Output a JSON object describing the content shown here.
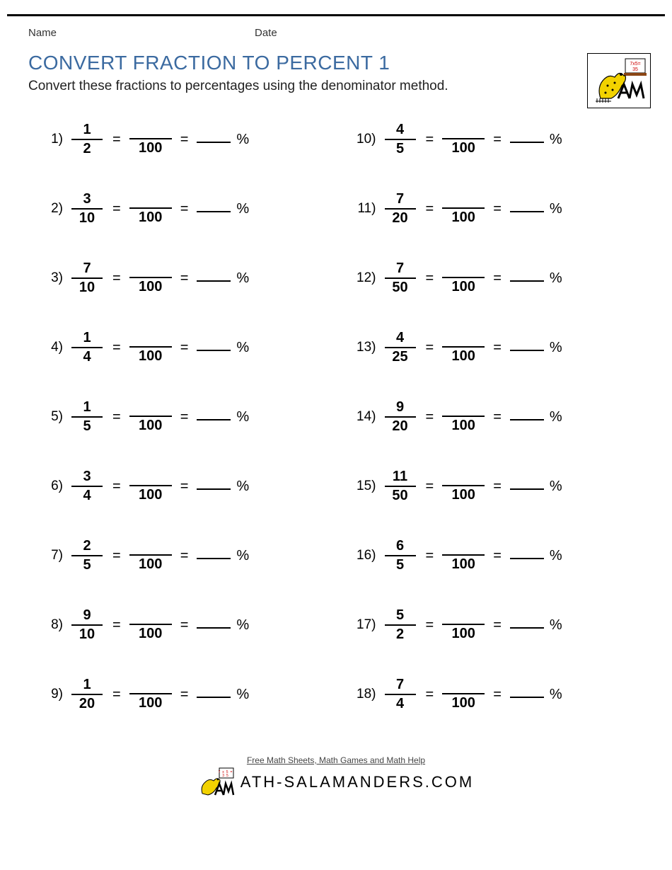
{
  "header": {
    "name_label": "Name",
    "date_label": "Date"
  },
  "title": "CONVERT FRACTION TO PERCENT 1",
  "instructions": "Convert these fractions to percentages using the denominator method.",
  "target_denominator": "100",
  "percent_symbol": "%",
  "equals_symbol": "=",
  "problems": [
    {
      "n": "1)",
      "num": "1",
      "den": "2"
    },
    {
      "n": "2)",
      "num": "3",
      "den": "10"
    },
    {
      "n": "3)",
      "num": "7",
      "den": "10"
    },
    {
      "n": "4)",
      "num": "1",
      "den": "4"
    },
    {
      "n": "5)",
      "num": "1",
      "den": "5"
    },
    {
      "n": "6)",
      "num": "3",
      "den": "4"
    },
    {
      "n": "7)",
      "num": "2",
      "den": "5"
    },
    {
      "n": "8)",
      "num": "9",
      "den": "10"
    },
    {
      "n": "9)",
      "num": "1",
      "den": "20"
    },
    {
      "n": "10)",
      "num": "4",
      "den": "5"
    },
    {
      "n": "11)",
      "num": "7",
      "den": "20"
    },
    {
      "n": "12)",
      "num": "7",
      "den": "50"
    },
    {
      "n": "13)",
      "num": "4",
      "den": "25"
    },
    {
      "n": "14)",
      "num": "9",
      "den": "20"
    },
    {
      "n": "15)",
      "num": "11",
      "den": "50"
    },
    {
      "n": "16)",
      "num": "6",
      "den": "5"
    },
    {
      "n": "17)",
      "num": "5",
      "den": "2"
    },
    {
      "n": "18)",
      "num": "7",
      "den": "4"
    }
  ],
  "footer": {
    "tagline": "Free Math Sheets, Math Games and Math Help",
    "brand": "ATH-SALAMANDERS.COM"
  },
  "colors": {
    "title": "#3b6aa0",
    "text": "#222222",
    "rule": "#000000",
    "salamander": "#f2d200"
  }
}
